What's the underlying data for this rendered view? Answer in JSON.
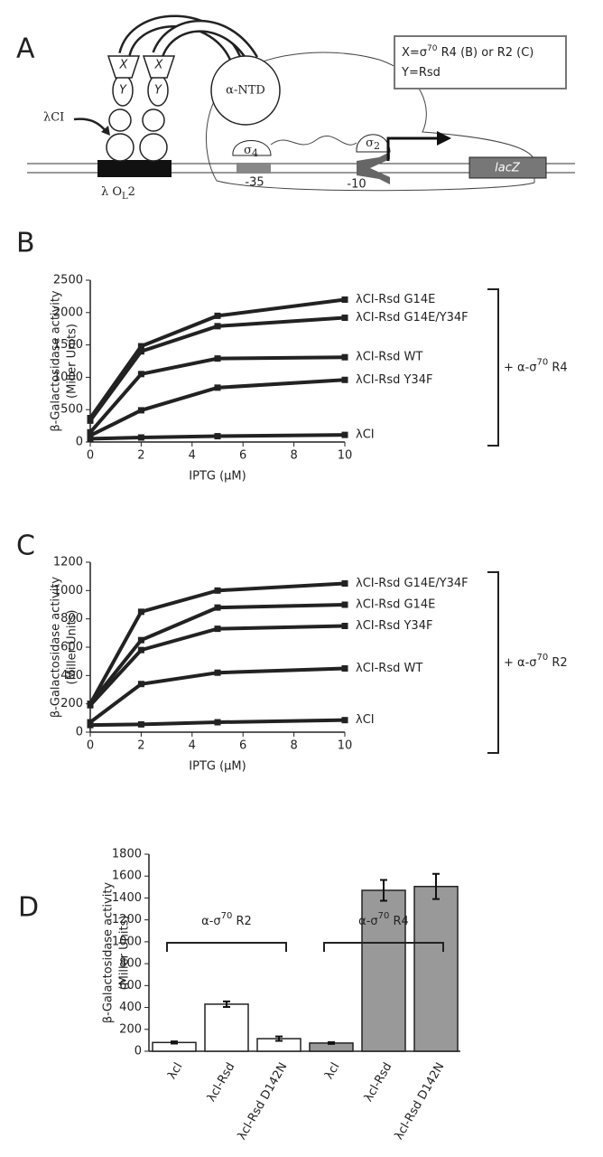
{
  "diagram": {
    "label": "A",
    "subunit_x": "X",
    "subunit_y": "Y",
    "alpha_ntd": "α-NTD",
    "lambda_ci": "λCI",
    "operator": [
      "λ O",
      "L",
      "2"
    ],
    "sigma4": [
      "σ",
      "4"
    ],
    "sigma2": [
      "σ",
      "2"
    ],
    "minus35": "-35",
    "minus10": "-10",
    "gene": "lacZ",
    "key": [
      [
        "X=σ",
        "70",
        " R4 (B) or R2 (C)"
      ],
      [
        "Y=Rsd"
      ]
    ]
  },
  "chart_data": [
    {
      "type": "line",
      "panel": "B",
      "xlabel": "IPTG (µM)",
      "ylabel": [
        "β-Galactosidase activity",
        "(Miller Units)"
      ],
      "annotation": [
        "+ α-σ",
        "70",
        " R4"
      ],
      "x": [
        0,
        2,
        5,
        10
      ],
      "xlim": [
        0,
        10
      ],
      "xticks": [
        0,
        2,
        4,
        6,
        8,
        10
      ],
      "ylim": [
        0,
        2500
      ],
      "yticks": [
        0,
        500,
        1000,
        1500,
        2000,
        2500
      ],
      "series": [
        {
          "name": "λCI-Rsd G14E",
          "color": "#222222",
          "values": [
            370,
            1480,
            1950,
            2200
          ]
        },
        {
          "name": "λCI-Rsd G14E/Y34F",
          "color": "#222222",
          "values": [
            330,
            1400,
            1790,
            1920
          ]
        },
        {
          "name": "λCI-Rsd WT",
          "color": "#222222",
          "values": [
            150,
            1050,
            1290,
            1310
          ]
        },
        {
          "name": "λCI-Rsd Y34F",
          "color": "#222222",
          "values": [
            100,
            490,
            840,
            960
          ]
        },
        {
          "name": "λCI",
          "color": "#222222",
          "values": [
            50,
            70,
            90,
            110
          ]
        }
      ]
    },
    {
      "type": "line",
      "panel": "C",
      "xlabel": "IPTG (µM)",
      "ylabel": [
        "β-Galactosidase activity",
        "(Miller Units)"
      ],
      "annotation": [
        "+ α-σ",
        "70",
        " R2"
      ],
      "x": [
        0,
        2,
        5,
        10
      ],
      "xlim": [
        0,
        10
      ],
      "xticks": [
        0,
        2,
        4,
        6,
        8,
        10
      ],
      "ylim": [
        0,
        1200
      ],
      "yticks": [
        0,
        200,
        400,
        600,
        800,
        1000,
        1200
      ],
      "series": [
        {
          "name": "λCI-Rsd G14E/Y34F",
          "color": "#222222",
          "values": [
            200,
            850,
            1000,
            1050
          ]
        },
        {
          "name": "λCI-Rsd G14E",
          "color": "#222222",
          "values": [
            200,
            650,
            880,
            900
          ]
        },
        {
          "name": "λCI-Rsd Y34F",
          "color": "#222222",
          "values": [
            190,
            580,
            730,
            750
          ]
        },
        {
          "name": "λCI-Rsd WT",
          "color": "#222222",
          "values": [
            70,
            340,
            420,
            450
          ]
        },
        {
          "name": "λCI",
          "color": "#222222",
          "values": [
            50,
            55,
            70,
            85
          ]
        }
      ]
    },
    {
      "type": "bar",
      "panel": "D",
      "ylabel": [
        "β-Galactosidase activity",
        "(Miller Units)"
      ],
      "categories": [
        "λcl",
        "λcl-Rsd",
        "λcl-Rsd D142N",
        "λcl",
        "λcl-Rsd",
        "λcl-Rsd D142N"
      ],
      "values": [
        80,
        430,
        115,
        75,
        1470,
        1505
      ],
      "errors": [
        10,
        25,
        20,
        8,
        95,
        115
      ],
      "colors": [
        "#ffffff",
        "#ffffff",
        "#ffffff",
        "#999999",
        "#999999",
        "#999999"
      ],
      "groups": [
        [
          "α-σ",
          "70",
          " R2"
        ],
        [
          "α-σ",
          "70",
          " R4"
        ]
      ],
      "ylim": [
        0,
        1800
      ],
      "yticks": [
        0,
        200,
        400,
        600,
        800,
        1000,
        1200,
        1400,
        1600,
        1800
      ]
    }
  ]
}
